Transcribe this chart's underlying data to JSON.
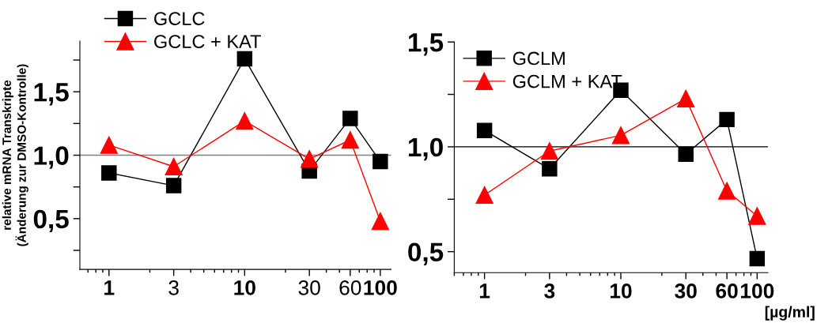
{
  "chart_data": [
    {
      "type": "line",
      "ylabel": "relative mRNA Transkripte\n(Änderung zur DMSO-Kontrolle)",
      "x": [
        1,
        3,
        10,
        30,
        60,
        100
      ],
      "log": "x",
      "xlim": [
        0.61,
        120
      ],
      "xticks": [
        {
          "value": 1,
          "label": "1"
        },
        {
          "value": 3,
          "label": "3"
        },
        {
          "value": 10,
          "label": "10"
        },
        {
          "value": 30,
          "label": "30"
        },
        {
          "value": 60,
          "label": "60"
        },
        {
          "value": 100,
          "label": "100"
        }
      ],
      "ylim": [
        0.1,
        1.9
      ],
      "yticks": [
        {
          "value": 0.25,
          "label": null
        },
        {
          "value": 0.5,
          "label": "0,5"
        },
        {
          "value": 0.75,
          "label": null
        },
        {
          "value": 1.0,
          "label": "1,0"
        },
        {
          "value": 1.25,
          "label": null
        },
        {
          "value": 1.5,
          "label": "1,5"
        },
        {
          "value": 1.75,
          "label": null
        }
      ],
      "grid": false,
      "legend": "top left",
      "line_style": "solid",
      "ref_lines": [
        {
          "axis": "y",
          "value": 1.0,
          "color": "#808080"
        }
      ],
      "series": [
        {
          "name": "GCLC",
          "color": "#000000",
          "marker": "square",
          "values": [
            0.86,
            0.76,
            1.76,
            0.875,
            1.29,
            0.95
          ]
        },
        {
          "name": "GCLC + KAT",
          "color": "#ff0000",
          "marker": "triangle",
          "values": [
            1.08,
            0.91,
            1.27,
            0.97,
            1.12,
            0.48
          ]
        }
      ]
    },
    {
      "type": "line",
      "xlabel": "[µg/ml]",
      "x": [
        1,
        3,
        10,
        30,
        60,
        100
      ],
      "log": "x",
      "xlim": [
        0.6,
        120
      ],
      "xticks": [
        {
          "value": 1,
          "label": "1"
        },
        {
          "value": 3,
          "label": "3"
        },
        {
          "value": 10,
          "label": "10"
        },
        {
          "value": 30,
          "label": "30"
        },
        {
          "value": 60,
          "label": "60"
        },
        {
          "value": 100,
          "label": "100"
        }
      ],
      "ylim": [
        0.4,
        1.5
      ],
      "yticks": [
        {
          "value": 0.5,
          "label": "0,5"
        },
        {
          "value": 0.75,
          "label": null
        },
        {
          "value": 1.0,
          "label": "1,0"
        },
        {
          "value": 1.25,
          "label": null
        },
        {
          "value": 1.5,
          "label": "1,5"
        }
      ],
      "grid": false,
      "legend": "top left",
      "line_style": "solid",
      "ref_lines": [
        {
          "axis": "y",
          "value": 1.0,
          "color": "#000000"
        }
      ],
      "series": [
        {
          "name": "GCLM",
          "color": "#000000",
          "marker": "square",
          "values": [
            1.078,
            0.895,
            1.27,
            0.965,
            1.13,
            0.467
          ]
        },
        {
          "name": "GCLM + KAT",
          "color": "#ff0000",
          "marker": "triangle",
          "values": [
            0.77,
            0.98,
            1.055,
            1.23,
            0.79,
            0.67
          ]
        }
      ]
    }
  ]
}
